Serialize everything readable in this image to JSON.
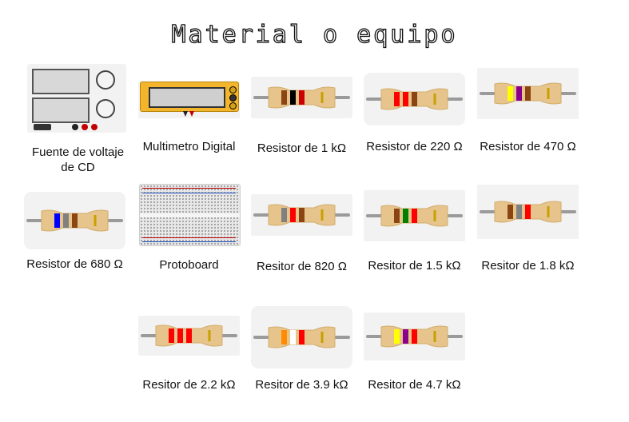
{
  "title": "Material o equipo",
  "items": [
    {
      "id": "psu",
      "label": "Fuente de voltaje de CD"
    },
    {
      "id": "multimeter",
      "label": "Multimetro Digital"
    },
    {
      "id": "r1k",
      "label": "Resistor de 1 kΩ",
      "bands": [
        "#8B4513",
        "#000000",
        "#cc0000"
      ]
    },
    {
      "id": "r220",
      "label": "Resistor de 220 Ω",
      "bands": [
        "#ff0000",
        "#ff0000",
        "#8B4513"
      ]
    },
    {
      "id": "r470",
      "label": "Resistor de 470  Ω",
      "bands": [
        "#ffff00",
        "#8B008B",
        "#8B4513"
      ]
    },
    {
      "id": "r680",
      "label": "Resistor de 680 Ω",
      "bands": [
        "#0000ff",
        "#808080",
        "#8B4513"
      ]
    },
    {
      "id": "protoboard",
      "label": "Protoboard"
    },
    {
      "id": "r820",
      "label": "Resitor de 820 Ω",
      "bands": [
        "#808080",
        "#ff0000",
        "#8B4513"
      ]
    },
    {
      "id": "r1_5k",
      "label": "Resitor de 1.5 kΩ",
      "bands": [
        "#8B4513",
        "#008000",
        "#ff0000"
      ]
    },
    {
      "id": "r1_8k",
      "label": "Resitor de 1.8 kΩ",
      "bands": [
        "#8B4513",
        "#808080",
        "#ff0000"
      ]
    },
    {
      "id": "r2_2k",
      "label": "Resitor de 2.2 kΩ",
      "bands": [
        "#ff0000",
        "#ff0000",
        "#ff0000"
      ]
    },
    {
      "id": "r3_9k",
      "label": "Resitor de 3.9 kΩ",
      "bands": [
        "#ff8c00",
        "#ffffff",
        "#ff0000"
      ]
    },
    {
      "id": "r4_7k",
      "label": "Resitor de 4.7 kΩ",
      "bands": [
        "#ffff00",
        "#8B008B",
        "#ff0000"
      ]
    }
  ],
  "colors": {
    "resistor_body": "#e6c48c",
    "lead": "#9a9a9a",
    "tolerance_band": "#c8a000"
  }
}
